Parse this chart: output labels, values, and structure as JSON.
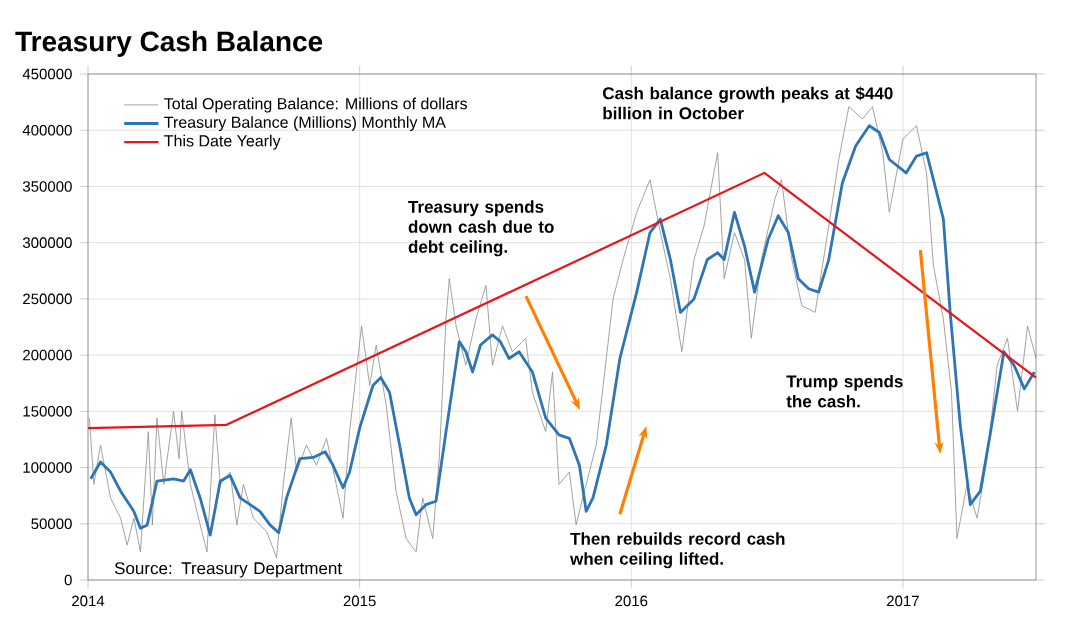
{
  "chart_data": {
    "type": "line",
    "title": "Treasury Cash Balance",
    "annotations": [
      "Cash balance growth peaks at $440 billion in October",
      "Treasury spends down cash due to debt ceiling.",
      "Then rebuilds record cash when ceiling lifted.",
      "Trump spends the cash.",
      "Source: Treasury Department"
    ],
    "xlim": [
      2014,
      2017.49
    ],
    "xticks": [
      {
        "value": 2014,
        "label": "2014"
      },
      {
        "value": 2015,
        "label": "2015"
      },
      {
        "value": 2016,
        "label": "2016"
      },
      {
        "value": 2017,
        "label": "2017"
      }
    ],
    "ylim": [
      0,
      450000
    ],
    "yticks": [
      0,
      50000,
      100000,
      150000,
      200000,
      250000,
      300000,
      350000,
      400000,
      450000
    ],
    "grid": true,
    "legend": "top left",
    "series": [
      {
        "name": "Total Operating Balance: Millions of dollars",
        "color": "#8c8c8c",
        "x": [
          2014.005,
          2014.022,
          2014.046,
          2014.083,
          2014.12,
          2014.144,
          2014.169,
          2014.193,
          2014.222,
          2014.237,
          2014.254,
          2014.279,
          2014.315,
          2014.335,
          2014.345,
          2014.377,
          2014.413,
          2014.438,
          2014.467,
          2014.487,
          2014.523,
          2014.548,
          2014.572,
          2014.609,
          2014.658,
          2014.694,
          2014.719,
          2014.748,
          2014.768,
          2014.804,
          2014.841,
          2014.878,
          2014.914,
          2014.939,
          2014.963,
          2014.988,
          2015.007,
          2015.037,
          2015.061,
          2015.098,
          2015.134,
          2015.171,
          2015.208,
          2015.232,
          2015.269,
          2015.293,
          2015.318,
          2015.33,
          2015.355,
          2015.391,
          2015.428,
          2015.465,
          2015.489,
          2015.526,
          2015.562,
          2015.611,
          2015.636,
          2015.685,
          2015.71,
          2015.734,
          2015.772,
          2015.797,
          2015.821,
          2015.871,
          2015.908,
          2015.933,
          2015.97,
          2016.02,
          2016.069,
          2016.107,
          2016.144,
          2016.186,
          2016.231,
          2016.268,
          2016.318,
          2016.342,
          2016.38,
          2016.417,
          2016.442,
          2016.479,
          2016.529,
          2016.553,
          2016.591,
          2016.628,
          2016.677,
          2016.727,
          2016.764,
          2016.801,
          2016.851,
          2016.888,
          2016.926,
          2016.95,
          2017.0,
          2017.05,
          2017.087,
          2017.112,
          2017.149,
          2017.179,
          2017.199,
          2017.236,
          2017.273,
          2017.31,
          2017.347,
          2017.385,
          2017.422,
          2017.459,
          2017.49
        ],
        "values": [
          144000,
          85000,
          120000,
          73000,
          55000,
          31000,
          55000,
          25000,
          132000,
          49000,
          144000,
          85000,
          150000,
          108000,
          150000,
          85000,
          49000,
          25000,
          147000,
          85000,
          96000,
          49000,
          85000,
          55000,
          43000,
          20000,
          85000,
          144000,
          96000,
          120000,
          102000,
          126000,
          85000,
          55000,
          132000,
          185000,
          226000,
          173000,
          209000,
          155000,
          79000,
          37000,
          25000,
          73000,
          37000,
          108000,
          232000,
          268000,
          226000,
          191000,
          232000,
          262000,
          191000,
          226000,
          203000,
          215000,
          167000,
          132000,
          185000,
          85000,
          96000,
          49000,
          73000,
          120000,
          197000,
          250000,
          285000,
          327000,
          356000,
          309000,
          268000,
          203000,
          285000,
          315000,
          380000,
          268000,
          309000,
          285000,
          215000,
          285000,
          339000,
          356000,
          285000,
          244000,
          238000,
          315000,
          374000,
          421000,
          410000,
          421000,
          380000,
          327000,
          392000,
          404000,
          362000,
          280000,
          232000,
          167000,
          37000,
          85000,
          55000,
          108000,
          191000,
          215000,
          150000,
          226000,
          197000
        ]
      },
      {
        "name": "Treasury Balance (Millions) Monthly MA",
        "color": "#2e75b6",
        "x": [
          2014.01,
          2014.046,
          2014.083,
          2014.12,
          2014.169,
          2014.193,
          2014.218,
          2014.254,
          2014.315,
          2014.352,
          2014.377,
          2014.413,
          2014.45,
          2014.487,
          2014.523,
          2014.56,
          2014.597,
          2014.633,
          2014.67,
          2014.702,
          2014.731,
          2014.78,
          2014.829,
          2014.873,
          2014.902,
          2014.939,
          2014.963,
          2015.0,
          2015.049,
          2015.078,
          2015.11,
          2015.147,
          2015.183,
          2015.208,
          2015.244,
          2015.281,
          2015.318,
          2015.367,
          2015.391,
          2015.416,
          2015.445,
          2015.489,
          2015.518,
          2015.55,
          2015.587,
          2015.636,
          2015.685,
          2015.734,
          2015.772,
          2015.809,
          2015.834,
          2015.859,
          2015.908,
          2015.958,
          2016.02,
          2016.069,
          2016.107,
          2016.144,
          2016.181,
          2016.231,
          2016.28,
          2016.318,
          2016.342,
          2016.38,
          2016.417,
          2016.454,
          2016.504,
          2016.541,
          2016.578,
          2016.615,
          2016.653,
          2016.69,
          2016.727,
          2016.777,
          2016.826,
          2016.876,
          2016.913,
          2016.95,
          2017.012,
          2017.05,
          2017.087,
          2017.124,
          2017.149,
          2017.174,
          2017.211,
          2017.248,
          2017.285,
          2017.323,
          2017.372,
          2017.409,
          2017.447,
          2017.484
        ],
        "values": [
          90000,
          105000,
          96000,
          79000,
          61000,
          46000,
          49000,
          88000,
          90000,
          88000,
          98000,
          73000,
          40000,
          88000,
          93000,
          73000,
          67000,
          61000,
          49000,
          42000,
          73000,
          108000,
          109000,
          114000,
          102000,
          82000,
          96000,
          135000,
          173000,
          180000,
          167000,
          120000,
          73000,
          58000,
          67000,
          70000,
          132000,
          212000,
          203000,
          185000,
          209000,
          218000,
          212000,
          197000,
          203000,
          185000,
          144000,
          129000,
          126000,
          102000,
          61000,
          73000,
          120000,
          197000,
          256000,
          309000,
          321000,
          285000,
          238000,
          250000,
          285000,
          291000,
          285000,
          327000,
          297000,
          256000,
          303000,
          324000,
          309000,
          268000,
          259000,
          256000,
          285000,
          353000,
          386000,
          404000,
          398000,
          374000,
          362000,
          377000,
          380000,
          345000,
          321000,
          238000,
          138000,
          67000,
          79000,
          132000,
          203000,
          191000,
          170000,
          185000
        ]
      },
      {
        "name": "This Date Yearly",
        "color": "#e8151b",
        "x": [
          2014,
          2014.51,
          2016.49,
          2017.49
        ],
        "values": [
          135000,
          138000,
          362000,
          180000
        ]
      }
    ]
  }
}
